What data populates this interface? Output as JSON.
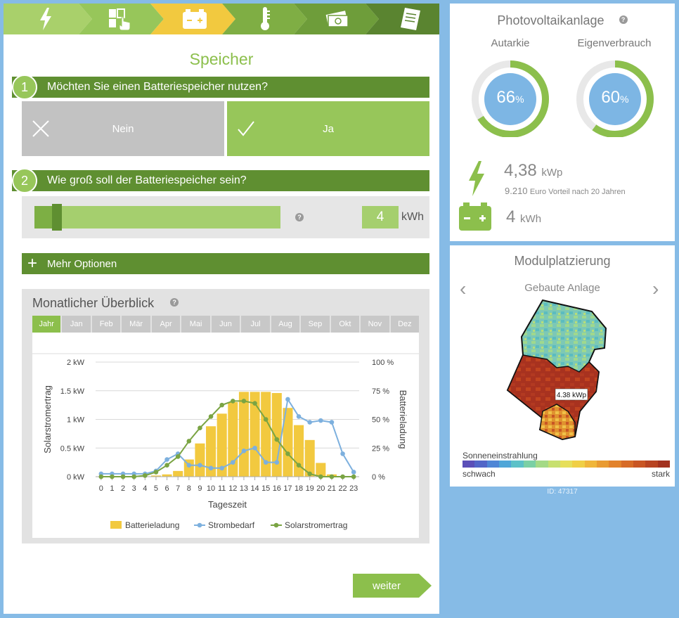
{
  "steps": [
    {
      "icon": "lightning-icon",
      "color": "#a9d06b"
    },
    {
      "icon": "roof-selection-icon",
      "color": "#97c65a"
    },
    {
      "icon": "battery-icon",
      "color": "#f2c93f"
    },
    {
      "icon": "thermometer-icon",
      "color": "#7fae44"
    },
    {
      "icon": "money-icon",
      "color": "#6e9d3a"
    },
    {
      "icon": "document-icon",
      "color": "#5a8430"
    }
  ],
  "page": {
    "title": "Speicher"
  },
  "q1": {
    "num": "1",
    "label": "Möchten Sie einen Batteriespeicher nutzen?",
    "no_label": "Nein",
    "yes_label": "Ja"
  },
  "q2": {
    "num": "2",
    "label": "Wie groß soll der Batteriespeicher sein?",
    "value": "4",
    "unit": "kWh",
    "help": "?",
    "slider_fraction": 0.2
  },
  "more": {
    "label": "Mehr Optionen"
  },
  "overview": {
    "title": "Monatlicher Überblick",
    "help": "?",
    "months": [
      "Jahr",
      "Jan",
      "Feb",
      "Mär",
      "Apr",
      "Mai",
      "Jun",
      "Jul",
      "Aug",
      "Sep",
      "Okt",
      "Nov",
      "Dez"
    ],
    "active_month": "Jahr"
  },
  "chart_data": {
    "type": "bar",
    "x": [
      "0",
      "1",
      "2",
      "3",
      "4",
      "5",
      "6",
      "7",
      "8",
      "9",
      "10",
      "11",
      "12",
      "13",
      "14",
      "15",
      "16",
      "17",
      "18",
      "19",
      "20",
      "21",
      "22",
      "23"
    ],
    "xlabel": "Tageszeit",
    "ylabel_left": "Solarstromertrag",
    "ylabel_right": "Batterieladung",
    "yticks_left": [
      "0 kW",
      "0.5 kW",
      "1 kW",
      "1.5 kW",
      "2 kW"
    ],
    "yticks_right": [
      "0 %",
      "25 %",
      "50 %",
      "75 %",
      "100 %"
    ],
    "ylim_left": [
      0,
      2
    ],
    "ylim_right": [
      0,
      100
    ],
    "grid": true,
    "legend_position": "bottom",
    "series": [
      {
        "name": "Batterieladung",
        "type": "bar",
        "axis": "right",
        "color": "#f2c93f",
        "values": [
          0,
          0,
          0,
          0,
          0,
          1,
          2,
          5,
          15,
          29,
          44,
          55,
          65,
          74,
          74,
          74,
          73,
          60,
          45,
          32,
          12,
          2,
          0,
          0
        ]
      },
      {
        "name": "Strombedarf",
        "type": "line",
        "axis": "left",
        "color": "#7db0de",
        "values": [
          0.05,
          0.05,
          0.05,
          0.05,
          0.05,
          0.1,
          0.3,
          0.4,
          0.2,
          0.2,
          0.15,
          0.15,
          0.25,
          0.45,
          0.5,
          0.25,
          0.25,
          1.35,
          1.05,
          0.95,
          0.98,
          0.95,
          0.4,
          0.08
        ]
      },
      {
        "name": "Solarstromertrag",
        "type": "line",
        "axis": "left",
        "color": "#7aa443",
        "values": [
          0,
          0,
          0,
          0,
          0.02,
          0.08,
          0.2,
          0.35,
          0.62,
          0.85,
          1.05,
          1.25,
          1.32,
          1.32,
          1.28,
          1.0,
          0.65,
          0.4,
          0.2,
          0.05,
          0,
          0,
          0,
          0
        ]
      }
    ]
  },
  "next": {
    "label": "weiter"
  },
  "pv": {
    "title": "Photovoltaikanlage",
    "help": "?",
    "autarkie_label": "Autarkie",
    "autarkie_value": "66",
    "autarkie_fraction": 0.66,
    "eigen_label": "Eigenverbrauch",
    "eigen_value": "60",
    "eigen_fraction": 0.6,
    "percent_sign": "%",
    "power_value": "4,38",
    "power_unit": "kWp",
    "savings_value": "9.210",
    "savings_text": "Euro Vorteil nach 20 Jahren",
    "storage_value": "4",
    "storage_unit": "kWh",
    "ring_color": "#8cbf4c",
    "ring_fill": "#7db6e4"
  },
  "placement": {
    "title": "Modulplatzierung",
    "subtitle": "Gebaute Anlage",
    "prev": "‹",
    "next": "›",
    "map_label": "4.38 kWp",
    "legend_title": "Sonneneinstrahlung",
    "legend_low": "schwach",
    "legend_high": "stark",
    "legend_colors": [
      "#5b4fb8",
      "#5266c8",
      "#4f86d6",
      "#4fa6d8",
      "#5cc1c8",
      "#7bd0a5",
      "#a4da86",
      "#c7e070",
      "#e6df5a",
      "#f0cf45",
      "#f0b63a",
      "#e99b32",
      "#e2822c",
      "#d76b27",
      "#c95624",
      "#b84422",
      "#a3321f"
    ]
  },
  "footer": {
    "id": "ID: 47317"
  }
}
